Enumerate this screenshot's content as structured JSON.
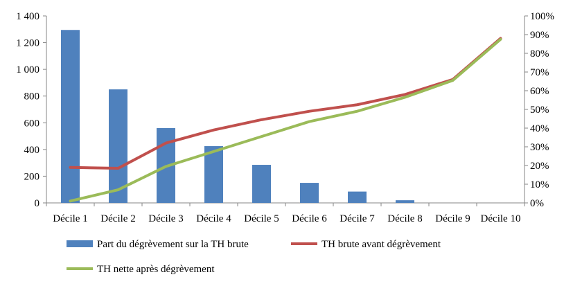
{
  "chart_data": {
    "type": "bar+line",
    "categories": [
      "Décile 1",
      "Décile 2",
      "Décile 3",
      "Décile 4",
      "Décile 5",
      "Décile 6",
      "Décile 7",
      "Décile 8",
      "Décile 9",
      "Décile 10"
    ],
    "series": [
      {
        "name": "Part du dégrèvement sur la TH brute",
        "type": "bar",
        "axis": "left",
        "color": "#4F81BD",
        "values": [
          1295,
          850,
          560,
          425,
          285,
          150,
          85,
          20,
          0,
          0
        ]
      },
      {
        "name": "TH brute avant dégrèvement",
        "type": "line",
        "axis": "right",
        "color": "#C0504D",
        "values": [
          0.19,
          0.185,
          0.32,
          0.39,
          0.445,
          0.49,
          0.525,
          0.58,
          0.66,
          0.88
        ]
      },
      {
        "name": "TH nette après dégrèvement",
        "type": "line",
        "axis": "right",
        "color": "#9BBB59",
        "values": [
          0.01,
          0.07,
          0.195,
          0.275,
          0.355,
          0.435,
          0.49,
          0.565,
          0.655,
          0.875
        ]
      }
    ],
    "left_axis": {
      "ylim": [
        0,
        1400
      ],
      "ticks": [
        0,
        200,
        400,
        600,
        800,
        1000,
        1200,
        1400
      ],
      "tick_labels": [
        "0",
        "200",
        "400",
        "600",
        "800",
        "1 000",
        "1 200",
        "1 400"
      ]
    },
    "right_axis": {
      "ylim": [
        0,
        1
      ],
      "ticks": [
        0,
        0.1,
        0.2,
        0.3,
        0.4,
        0.5,
        0.6,
        0.7,
        0.8,
        0.9,
        1.0
      ],
      "tick_labels": [
        "0%",
        "10%",
        "20%",
        "30%",
        "40%",
        "50%",
        "60%",
        "70%",
        "80%",
        "90%",
        "100%"
      ]
    },
    "grid": false,
    "legend": "bottom"
  }
}
